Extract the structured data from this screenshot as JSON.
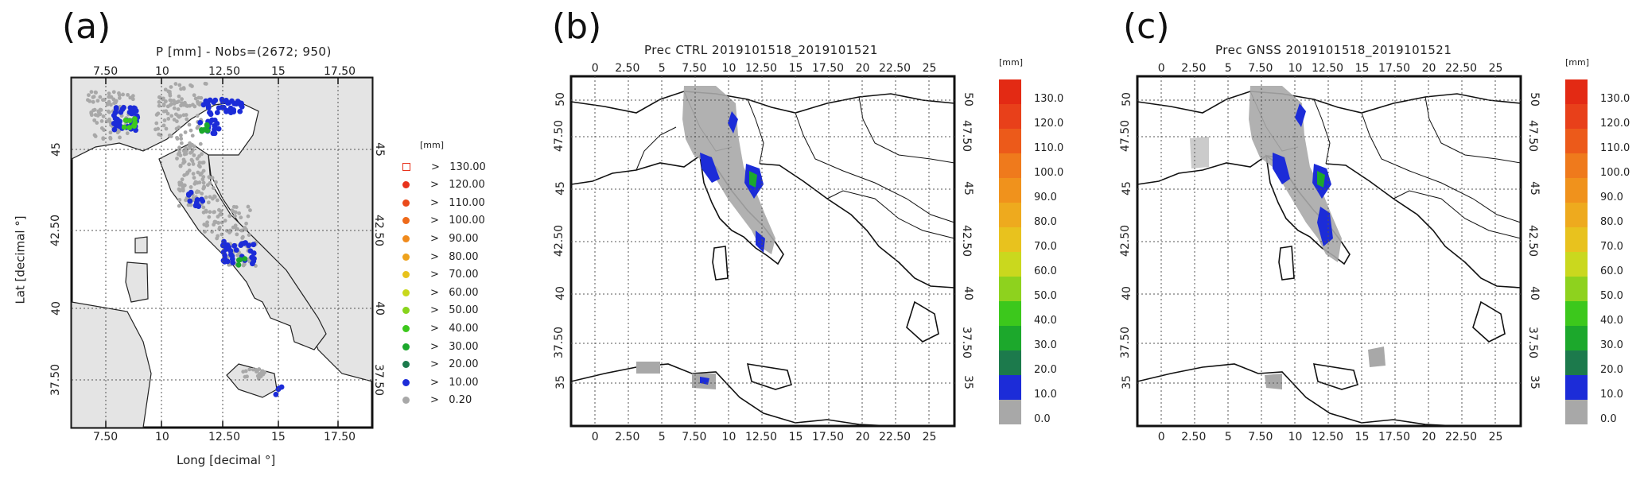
{
  "panels": [
    {
      "id": "a",
      "letter": "(a)",
      "title": "P [mm] - Nobs=(2672; 950)",
      "xlabel": "Long [decimal °]",
      "ylabel": "Lat [decimal °]",
      "x_ticks": [
        "7.50",
        "10",
        "12.50",
        "15",
        "17.50"
      ],
      "y_ticks": [
        "45",
        "42.50",
        "40",
        "37.50"
      ],
      "legend_unit": "[mm]",
      "legend": [
        {
          "label": "> 130.00",
          "color": "#e8321c",
          "marker": "square-open"
        },
        {
          "label": "> 120.00",
          "color": "#e8321c",
          "marker": "dot"
        },
        {
          "label": "> 110.00",
          "color": "#ea4a1a",
          "marker": "dot"
        },
        {
          "label": "> 100.00",
          "color": "#ee6a1a",
          "marker": "dot"
        },
        {
          "label": "> 90.00",
          "color": "#f08a1c",
          "marker": "dot"
        },
        {
          "label": "> 80.00",
          "color": "#eea21c",
          "marker": "dot"
        },
        {
          "label": "> 70.00",
          "color": "#e8c21c",
          "marker": "dot"
        },
        {
          "label": "> 60.00",
          "color": "#c8d81c",
          "marker": "dot"
        },
        {
          "label": "> 50.00",
          "color": "#88d41c",
          "marker": "dot"
        },
        {
          "label": "> 40.00",
          "color": "#3cc81c",
          "marker": "dot"
        },
        {
          "label": "> 30.00",
          "color": "#1ca82c",
          "marker": "dot"
        },
        {
          "label": "> 20.00",
          "color": "#1c7a4c",
          "marker": "dot"
        },
        {
          "label": "> 10.00",
          "color": "#1c2cd8",
          "marker": "dot"
        },
        {
          "label": "> 0.20",
          "color": "#a8a8a8",
          "marker": "dot"
        }
      ]
    },
    {
      "id": "b",
      "letter": "(b)",
      "title": "Prec CTRL 2019101518_2019101521",
      "x_ticks": [
        "0",
        "2.50",
        "5",
        "7.50",
        "10",
        "12.50",
        "15",
        "17.50",
        "20",
        "22.50",
        "25"
      ],
      "y_ticks": [
        "50",
        "47.50",
        "45",
        "42.50",
        "40",
        "37.50",
        "35"
      ],
      "colorbar_unit": "[mm]",
      "colorbar_labels": [
        "130.0",
        "120.0",
        "110.0",
        "100.0",
        "90.0",
        "80.0",
        "70.0",
        "60.0",
        "50.0",
        "40.0",
        "30.0",
        "20.0",
        "10.0",
        "0.0"
      ]
    },
    {
      "id": "c",
      "letter": "(c)",
      "title": "Prec GNSS 2019101518_2019101521",
      "x_ticks": [
        "0",
        "2.50",
        "5",
        "7.50",
        "10",
        "12.50",
        "15",
        "17.50",
        "20",
        "22.50",
        "25"
      ],
      "y_ticks": [
        "50",
        "47.50",
        "45",
        "42.50",
        "40",
        "37.50",
        "35"
      ],
      "colorbar_unit": "[mm]",
      "colorbar_labels": [
        "130.0",
        "120.0",
        "110.0",
        "100.0",
        "90.0",
        "80.0",
        "70.0",
        "60.0",
        "50.0",
        "40.0",
        "30.0",
        "20.0",
        "10.0",
        "0.0"
      ]
    }
  ],
  "colorbar_colors": [
    "#e32a14",
    "#e8401a",
    "#ec5a1a",
    "#ef7a1c",
    "#f0921c",
    "#eeaa1e",
    "#e8c21e",
    "#cad81e",
    "#8ed21e",
    "#3cc81c",
    "#1ca82c",
    "#1c7a4c",
    "#1c2cd8",
    "#a8a8a8"
  ]
}
